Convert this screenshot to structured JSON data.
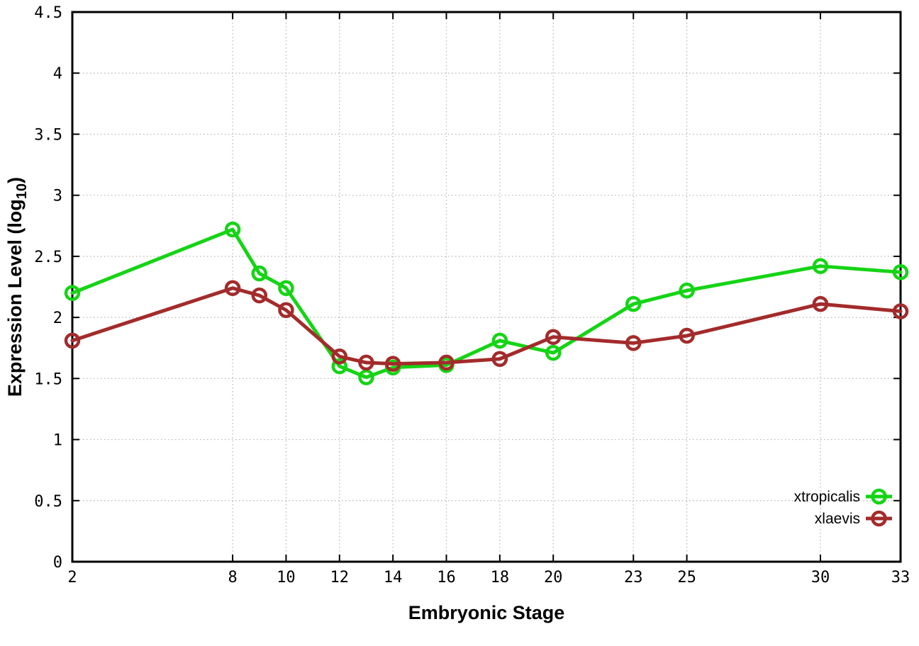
{
  "chart_data": {
    "type": "line",
    "title": "",
    "xlabel": "Embryonic Stage",
    "ylabel": "Expression Level (log10)",
    "ylabel_parts": {
      "prefix": "Expression Level (log",
      "sub": "10",
      "suffix": ")"
    },
    "x": [
      2,
      8,
      9,
      10,
      12,
      13,
      14,
      16,
      18,
      20,
      23,
      25,
      30,
      33
    ],
    "series": [
      {
        "name": "xtropicalis",
        "color": "#15d415",
        "values": [
          2.2,
          2.72,
          2.36,
          2.24,
          1.6,
          1.51,
          1.59,
          1.61,
          1.81,
          1.71,
          2.11,
          2.22,
          2.42,
          2.37
        ]
      },
      {
        "name": "xlaevis",
        "color": "#a32b2b",
        "values": [
          1.81,
          2.24,
          2.18,
          2.06,
          1.68,
          1.63,
          1.62,
          1.63,
          1.66,
          1.84,
          1.79,
          1.85,
          2.11,
          2.05
        ]
      }
    ],
    "xticks": [
      2,
      8,
      10,
      12,
      14,
      16,
      18,
      20,
      23,
      25,
      30,
      33
    ],
    "xtick_labels": [
      "2",
      "8",
      "10",
      "12",
      "14",
      "16",
      "18",
      "20",
      "23",
      "25",
      "30",
      "33"
    ],
    "yticks": [
      0,
      0.5,
      1,
      1.5,
      2,
      2.5,
      3,
      3.5,
      4,
      4.5
    ],
    "ytick_labels": [
      "0",
      "0.5",
      "1",
      "1.5",
      "2",
      "2.5",
      "3",
      "3.5",
      "4",
      "4.5"
    ],
    "xlim": [
      2,
      33
    ],
    "ylim": [
      0,
      4.5
    ],
    "grid": true,
    "legend_position": "bottom-right",
    "colors": {
      "border": "#000000",
      "gridline": "#b3b3b3",
      "background": "#ffffff",
      "text": "#000000"
    }
  }
}
